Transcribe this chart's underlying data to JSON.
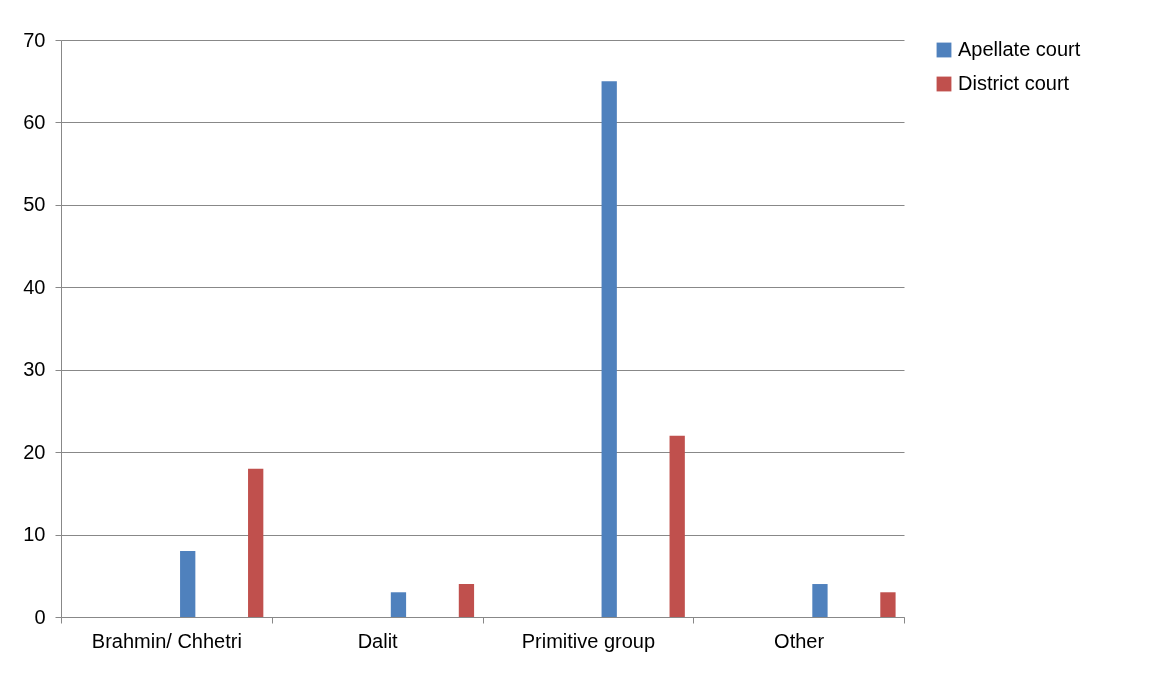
{
  "chart_data": {
    "type": "bar",
    "categories": [
      "Brahmin/ Chhetri",
      "Dalit",
      "Primitive group",
      "Other"
    ],
    "series": [
      {
        "name": "Apellate court",
        "color": "#4f81bd",
        "values": [
          8,
          3,
          65,
          4
        ]
      },
      {
        "name": "District court",
        "color": "#c0504d",
        "values": [
          18,
          4,
          22,
          3
        ]
      }
    ],
    "ylim": [
      0,
      70
    ],
    "yticks": [
      0,
      10,
      20,
      30,
      40,
      50,
      60,
      70
    ],
    "grid": "y",
    "legend": "right"
  }
}
